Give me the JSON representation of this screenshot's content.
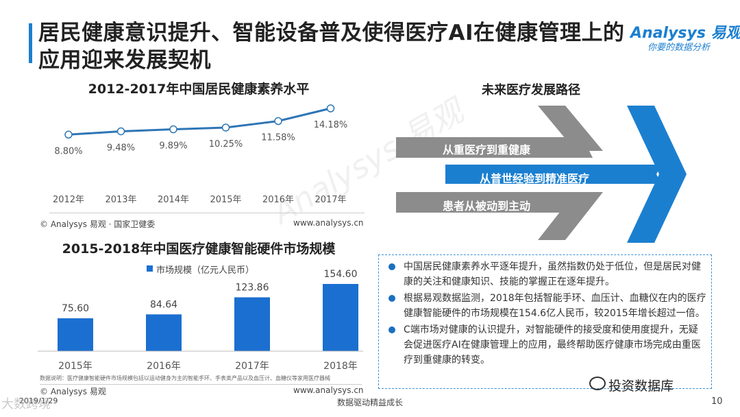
{
  "header": {
    "title": "居民健康意识提升、智能设备普及使得医疗AI在健康管理上的应用迎来发展契机",
    "logo_text": "Analysys 易观",
    "logo_tagline": "你要的数据分析"
  },
  "chart_data": [
    {
      "type": "line",
      "title": "2012-2017年中国居民健康素养水平",
      "categories": [
        "2012年",
        "2013年",
        "2014年",
        "2015年",
        "2016年",
        "2017年"
      ],
      "values": [
        8.8,
        9.48,
        9.89,
        10.25,
        11.58,
        14.18
      ],
      "value_labels": [
        "8.80%",
        "9.48%",
        "9.89%",
        "10.25%",
        "11.58%",
        "14.18%"
      ],
      "color": "#2e75b6",
      "grid": false,
      "source": "© Analysys 易观 · 国家卫健委",
      "website": "www.analysys.cn"
    },
    {
      "type": "bar",
      "title": "2015-2018年中国医疗健康智能硬件市场规模",
      "categories": [
        "2015年",
        "2016年",
        "2017年",
        "2018年"
      ],
      "series": [
        {
          "name": "市场规模（亿元人民币）",
          "values": [
            75.6,
            84.64,
            123.86,
            154.6
          ]
        }
      ],
      "value_labels": [
        "75.60",
        "84.64",
        "123.86",
        "154.60"
      ],
      "color": "#1b6fd0",
      "legend_position": "top-left",
      "grid": false,
      "note": "数据说明：医疗健康智能硬件市场规模包括以运动健身为主的智能手环、手表类产品以及血压计、血糖仪等家用医疗器械",
      "source": "© Analysys 易观",
      "website": "www.analysys.cn"
    }
  ],
  "path": {
    "title": "未来医疗发展路径",
    "steps": [
      "从重医疗到重健康",
      "从普世经验到精准医疗",
      "患者从被动到主动"
    ],
    "colors": {
      "gray": "#8c8c8c",
      "blue": "#1b7fd0"
    }
  },
  "bullets": [
    "中国居民健康素养水平逐年提升，虽然指数仍处于低位，但是居民对健康的关注和健康知识、技能的掌握正在逐年提升。",
    "根据易观数据监测，2018年包括智能手环、血压计、血糖仪在内的医疗健康智能硬件的市场规模在154.6亿人民币，较2015年增长超过一倍。",
    "C端市场对健康的认识提升，对智能硬件的接受度和使用度提升，无疑会促进医疗AI在健康管理上的应用，最终帮助医疗健康市场完成由重医疗到重健康的转变。"
  ],
  "footer": {
    "date": "2019/1/29",
    "slogan": "数据驱动精益成长",
    "page_number": "10",
    "wechat_name": "投资数据库",
    "watermark": "Analysys 易观",
    "corner_mark": "大数跨境"
  }
}
